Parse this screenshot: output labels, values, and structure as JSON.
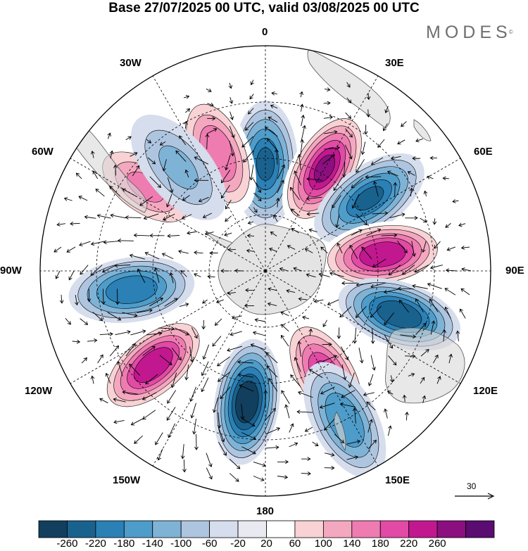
{
  "title": "Base 27/07/2025 00 UTC, valid 03/08/2025 00 UTC",
  "brand": {
    "name": "MODES",
    "mark": "©"
  },
  "longitude_labels": {
    "lon_0": "0",
    "lon_30e": "30E",
    "lon_60e": "60E",
    "lon_90e": "90E",
    "lon_120e": "120E",
    "lon_150e": "150E",
    "lon_180": "180",
    "lon_150w": "150W",
    "lon_120w": "120W",
    "lon_90w": "90W",
    "lon_60w": "60W",
    "lon_30w": "30W"
  },
  "reference_vector": {
    "label": "30"
  },
  "colorbar": {
    "ticks": [
      "-260",
      "-220",
      "-180",
      "-140",
      "-100",
      "-60",
      "-20",
      "20",
      "60",
      "100",
      "140",
      "180",
      "220",
      "260"
    ],
    "colors": [
      "#123f5e",
      "#1a628e",
      "#2b80b5",
      "#4e9cc9",
      "#7fb3d6",
      "#aec5e0",
      "#d6ddec",
      "#e9e9f2",
      "#ffffff",
      "#f8d2d4",
      "#f4a8c0",
      "#ee7cb0",
      "#e14aa5",
      "#c2188f",
      "#8b0f7f",
      "#5a0c70"
    ]
  },
  "anomaly_centers": [
    {
      "lat_deg": -52,
      "lon_deg": 0,
      "value": -200
    },
    {
      "lat_deg": -48,
      "lon_deg": 30,
      "value": 240
    },
    {
      "lat_deg": -45,
      "lon_deg": 55,
      "value": -200
    },
    {
      "lat_deg": -48,
      "lon_deg": 82,
      "value": 230
    },
    {
      "lat_deg": -40,
      "lon_deg": 108,
      "value": -220
    },
    {
      "lat_deg": -47,
      "lon_deg": 150,
      "value": 200
    },
    {
      "lat_deg": -43,
      "lon_deg": -172,
      "value": -260
    },
    {
      "lat_deg": -38,
      "lon_deg": -130,
      "value": 230
    },
    {
      "lat_deg": -42,
      "lon_deg": -98,
      "value": -180
    },
    {
      "lat_deg": -38,
      "lon_deg": -55,
      "value": 120
    },
    {
      "lat_deg": -45,
      "lon_deg": -22,
      "value": 150
    },
    {
      "lat_deg": -42,
      "lon_deg": -40,
      "value": -80
    },
    {
      "lat_deg": -30,
      "lon_deg": 152,
      "value": -140
    }
  ]
}
